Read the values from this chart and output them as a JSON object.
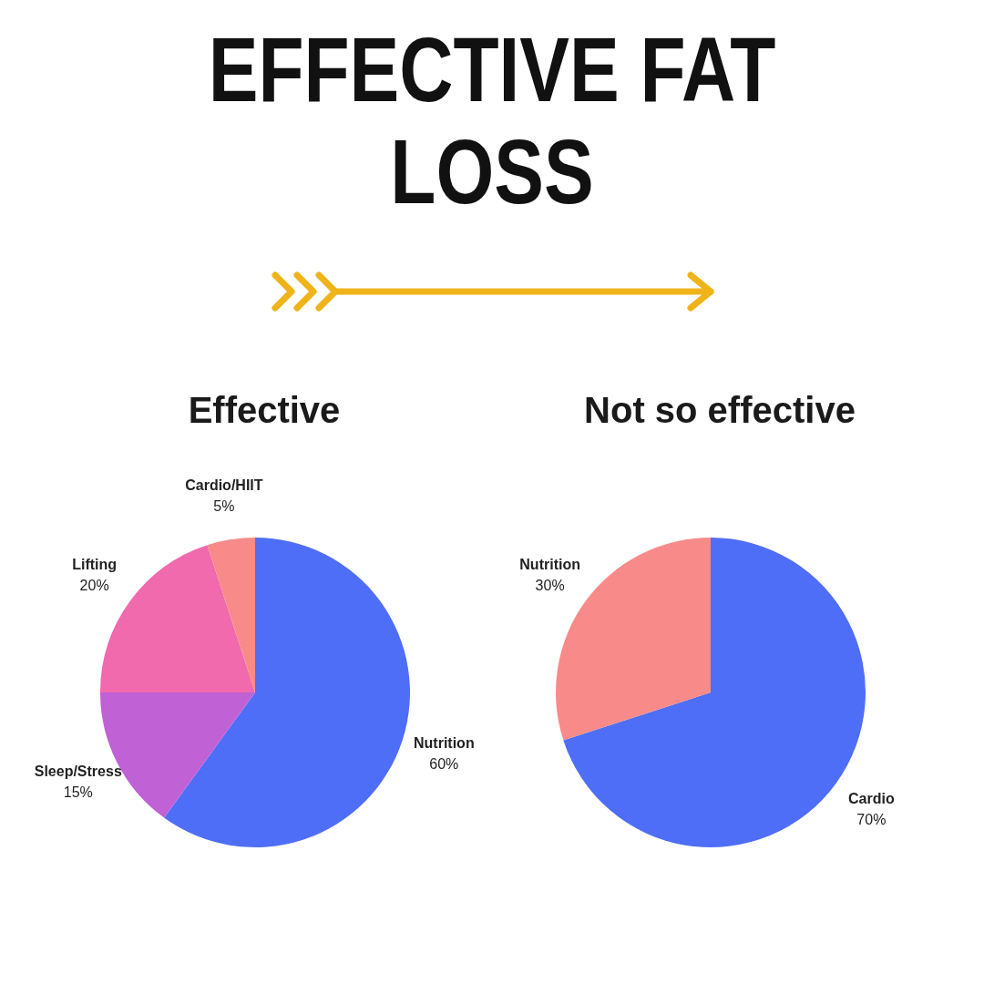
{
  "chart_data": [
    {
      "type": "pie",
      "title": "EFFECTIVE FAT LOSS",
      "subtitle": "Effective",
      "categories": [
        "Nutrition",
        "Sleep/Stress",
        "Lifting",
        "Cardio/HIIT"
      ],
      "values": [
        60,
        15,
        20,
        5
      ],
      "colors": [
        "#4f6ef7",
        "#c061d6",
        "#f06aad",
        "#f98a8a"
      ],
      "value_labels": [
        "60%",
        "15%",
        "20%",
        "5%"
      ]
    },
    {
      "type": "pie",
      "subtitle": "Not so effective",
      "categories": [
        "Cardio",
        "Nutrition"
      ],
      "values": [
        70,
        30
      ],
      "colors": [
        "#4f6ef7",
        "#f98a8a"
      ],
      "value_labels": [
        "70%",
        "30%"
      ]
    }
  ]
}
